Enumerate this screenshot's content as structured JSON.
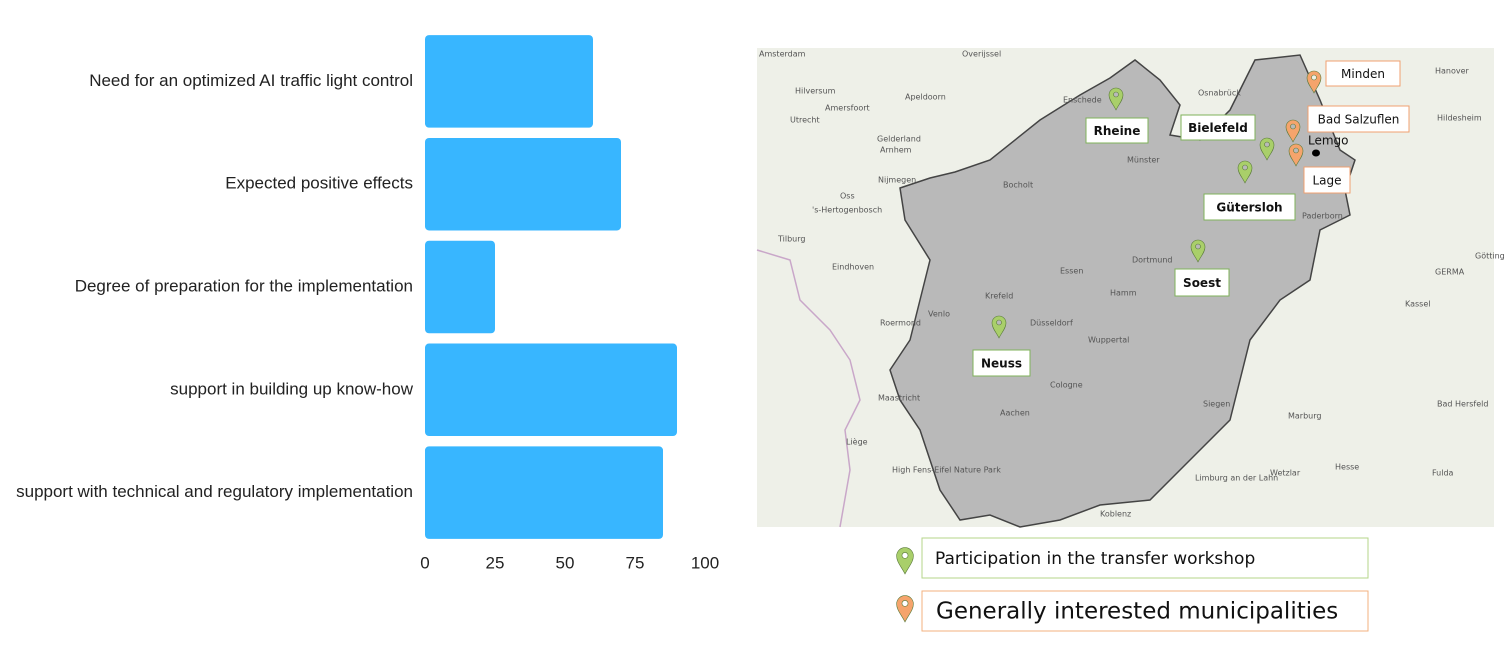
{
  "chart_data": {
    "type": "bar",
    "orientation": "horizontal",
    "categories": [
      "Need for an optimized AI traffic light control",
      "Expected positive effects",
      "Degree of preparation for the implementation",
      "support in building up know-how",
      "support with technical and regulatory implementation"
    ],
    "values": [
      60,
      70,
      25,
      90,
      85
    ],
    "color": "#38b6ff",
    "xlim": [
      0,
      100
    ],
    "xticks": [
      0,
      25,
      50,
      75,
      100
    ],
    "grid": false
  },
  "map": {
    "workshop_markers": [
      "Rheine",
      "Bielefeld",
      "Gütersloh",
      "Soest",
      "Neuss"
    ],
    "interested_markers": [
      "Minden",
      "Bad Salzuflen",
      "Lage"
    ],
    "town": "Lemgo",
    "legend": [
      {
        "label": "Participation in the transfer workshop",
        "color": "#a9cf6a"
      },
      {
        "label": "Generally interested municipalities",
        "color": "#f5a46c"
      }
    ],
    "base_labels": [
      "Amsterdam",
      "Overijssel",
      "Hilversum",
      "Apeldoorn",
      "Amersfoort",
      "Utrecht",
      "Enschede",
      "Osnabrück",
      "Hanover",
      "Hildesheim",
      "Gelderland",
      "Arnhem",
      "Münster",
      "Nijmegen",
      "Oss",
      "'s-Hertogenbosch",
      "Bocholt",
      "Tilburg",
      "Paderborn",
      "Eindhoven",
      "Dortmund",
      "Essen",
      "Krefeld",
      "Düsseldorf",
      "Wuppertal",
      "Hamm",
      "Kassel",
      "GERMA",
      "Roermond",
      "Venlo",
      "Maastricht",
      "Cologne",
      "Aachen",
      "Liège",
      "Siegen",
      "Marburg",
      "Bad Hersfeld",
      "Hesse",
      "Wetzlar",
      "Fulda",
      "Limburg an der Lahn",
      "Koblenz",
      "High Fens-Eifel Nature Park",
      "Göttingen"
    ]
  }
}
